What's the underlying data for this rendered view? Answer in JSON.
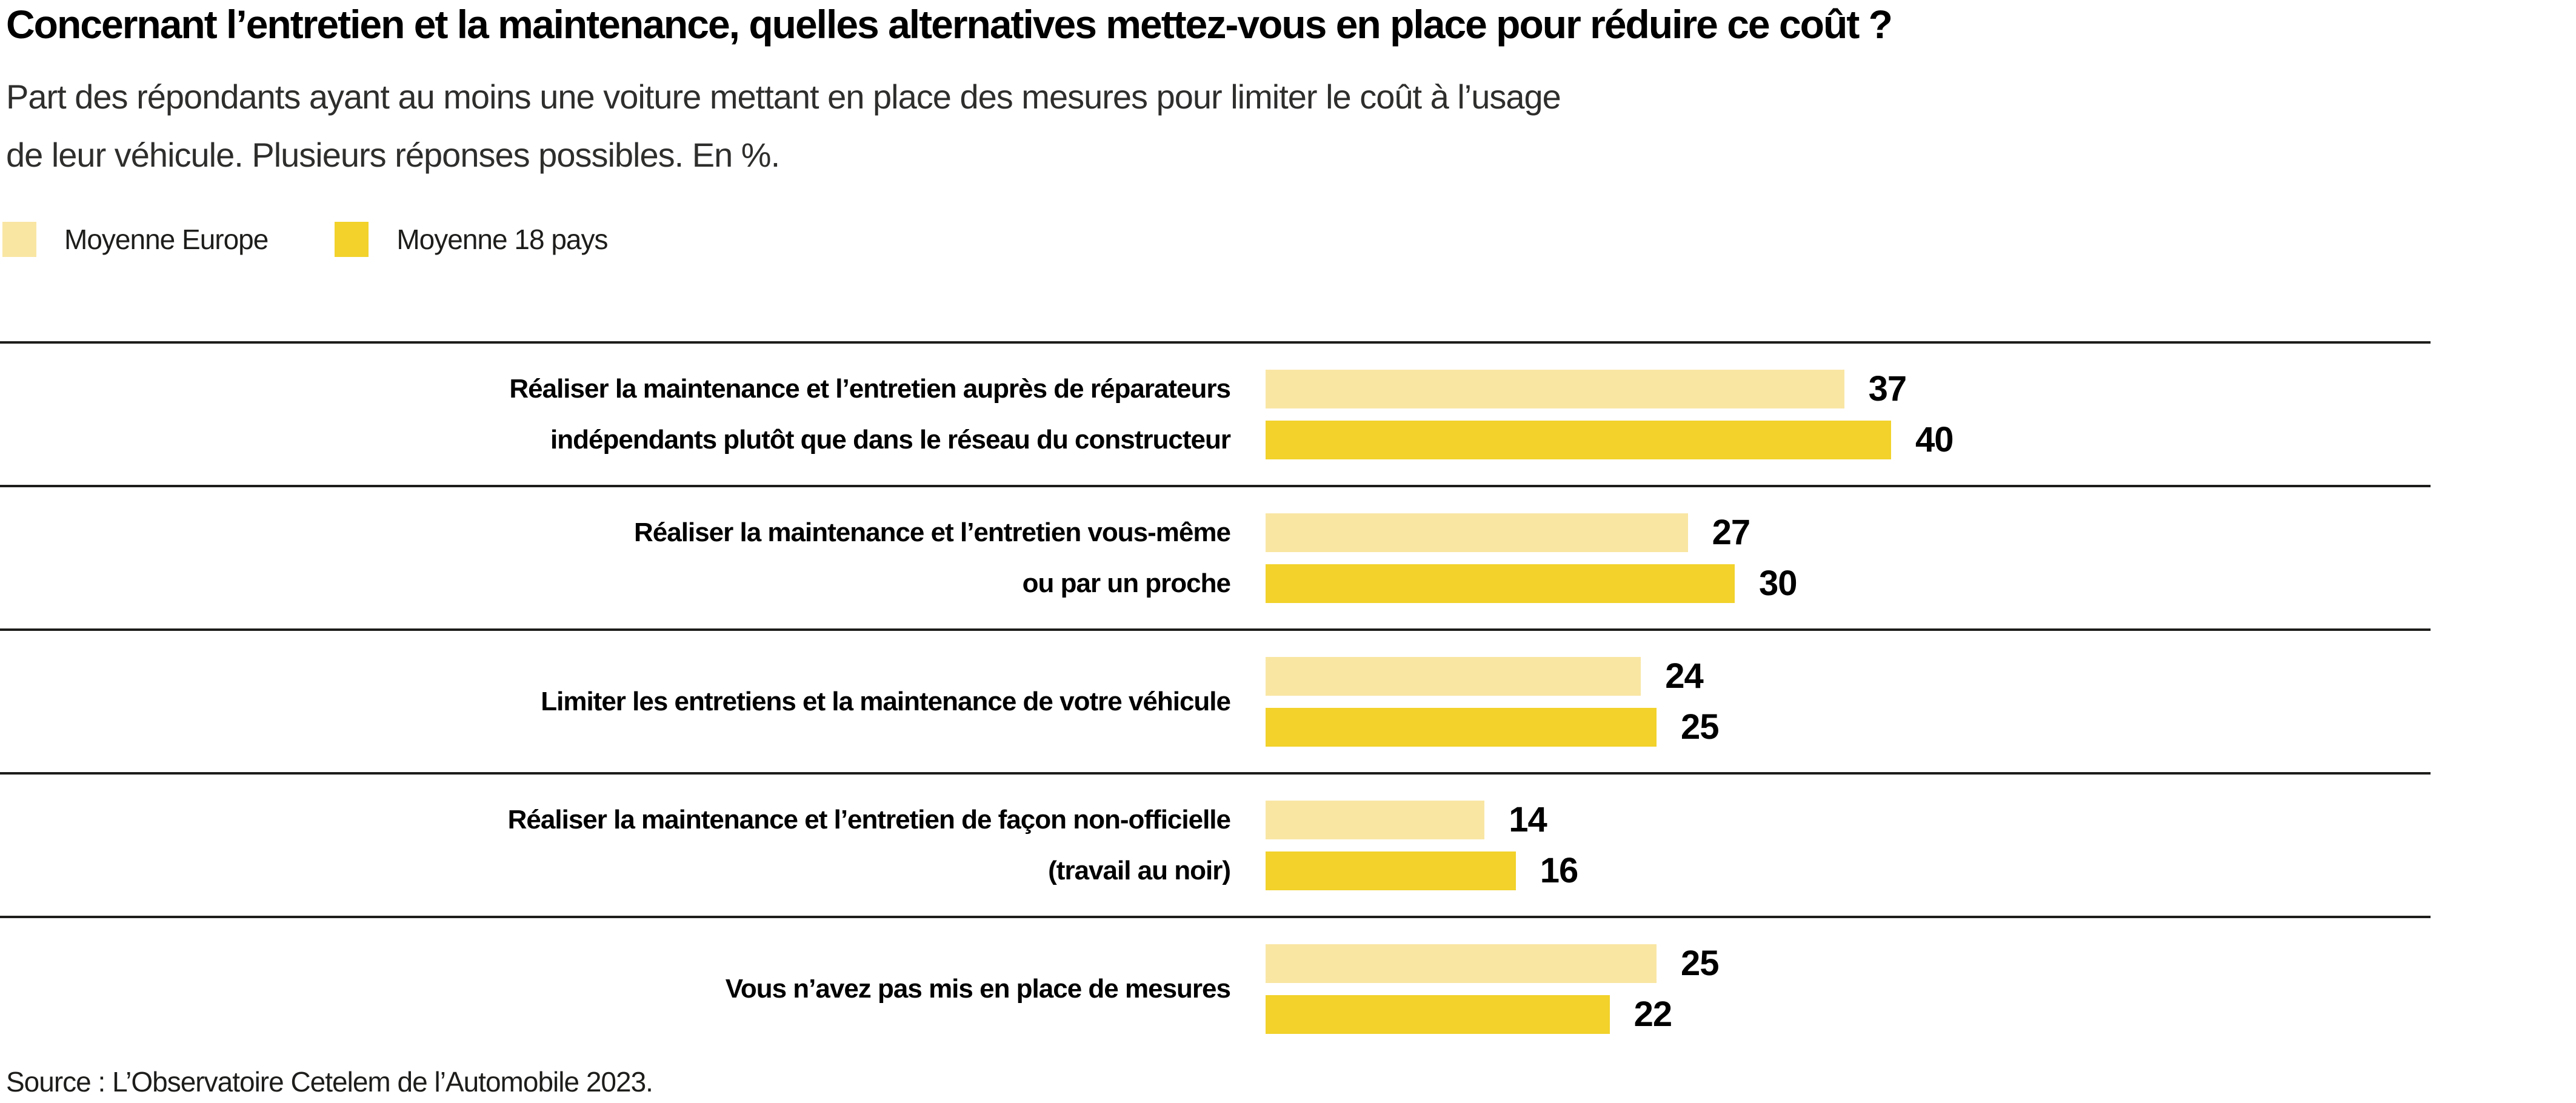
{
  "header": {
    "title": "Concernant l’entretien et la maintenance, quelles alternatives mettez-vous en place pour réduire ce coût ?",
    "subtitle_line1": "Part des répondants ayant au moins une voiture mettant en place des mesures pour limiter le coût à l’usage",
    "subtitle_line2": "de leur véhicule. Plusieurs réponses possibles. En %."
  },
  "legend": {
    "items": [
      {
        "label": "Moyenne Europe",
        "color": "#F9E6A3"
      },
      {
        "label": "Moyenne 18 pays",
        "color": "#F2D22B"
      }
    ]
  },
  "chart_data": {
    "type": "bar",
    "orientation": "horizontal",
    "unit": "%",
    "xlim": [
      0,
      45
    ],
    "grid": false,
    "legend_position": "top-left",
    "categories": [
      "Réaliser la maintenance et l’entretien auprès de réparateurs indépendants plutôt que dans le réseau du constructeur",
      "Réaliser la maintenance et l’entretien vous-même ou par un proche",
      "Limiter les entretiens et la maintenance de votre véhicule",
      "Réaliser la maintenance et l’entretien de façon non-officielle (travail au noir)",
      "Vous n’avez pas mis en place de mesures"
    ],
    "series": [
      {
        "name": "Moyenne Europe",
        "color": "#F9E6A3",
        "values": [
          37,
          27,
          24,
          14,
          25
        ]
      },
      {
        "name": "Moyenne 18 pays",
        "color": "#F2D22B",
        "values": [
          40,
          30,
          25,
          16,
          22
        ]
      }
    ],
    "rows": [
      {
        "lines": [
          "Réaliser la maintenance et l’entretien auprès de réparateurs",
          "indépendants plutôt que dans le réseau du constructeur"
        ],
        "values": [
          37,
          40
        ]
      },
      {
        "lines": [
          "Réaliser la maintenance et l’entretien vous-même",
          "ou par un proche"
        ],
        "values": [
          27,
          30
        ]
      },
      {
        "lines": [
          "Limiter les entretiens et la maintenance de votre véhicule"
        ],
        "values": [
          24,
          25
        ]
      },
      {
        "lines": [
          "Réaliser la maintenance et l’entretien de façon non-officielle",
          "(travail au noir)"
        ],
        "values": [
          14,
          16
        ]
      },
      {
        "lines": [
          "Vous n’avez pas mis en place de mesures"
        ],
        "values": [
          25,
          22
        ]
      }
    ]
  },
  "footer": {
    "source": "Source : L’Observatoire Cetelem de l’Automobile 2023."
  }
}
